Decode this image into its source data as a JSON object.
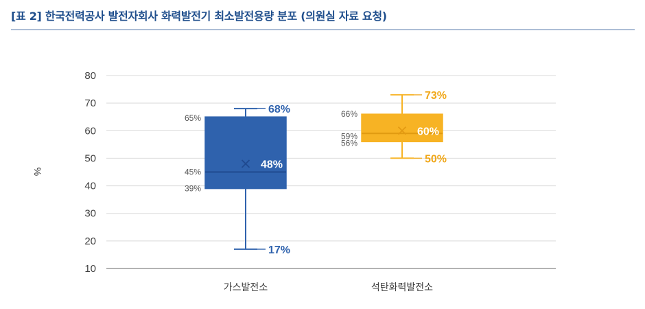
{
  "title": "[표 2] 한국전력공사 발전자회사 화력발전기 최소발전용량 분포 (의원실 자료 요청)",
  "chart_data": {
    "type": "boxplot",
    "ylabel": "%",
    "ylim": [
      10,
      80
    ],
    "yticks": [
      10,
      20,
      30,
      40,
      50,
      60,
      70,
      80
    ],
    "grid": true,
    "series": [
      {
        "category": "가스발전소",
        "color": "#2f62ad",
        "min": 17,
        "q1": 39,
        "median": 45,
        "q3": 65,
        "max": 68,
        "mean": 48,
        "labels": {
          "min": "17%",
          "q1": "39%",
          "median": "45%",
          "q3": "65%",
          "max": "68%",
          "mean": "48%"
        }
      },
      {
        "category": "석탄화력발전소",
        "color": "#f7b324",
        "min": 50,
        "q1": 56,
        "median": 59,
        "q3": 66,
        "max": 73,
        "mean": 60,
        "labels": {
          "min": "50%",
          "q1": "56%",
          "median": "59%",
          "q3": "66%",
          "max": "73%",
          "mean": "60%"
        }
      }
    ]
  }
}
